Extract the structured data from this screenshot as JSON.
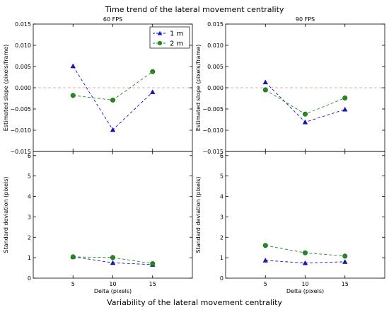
{
  "figure": {
    "title": "Time trend of the lateral movement centrality",
    "bottom_title": "Variability of the lateral movement centrality"
  },
  "legend": {
    "placement": "upper-right of top-left panel",
    "items": [
      {
        "label": "1 m",
        "color": "#1515c8",
        "marker": "triangle"
      },
      {
        "label": "2 m",
        "color": "#1e8c1e",
        "marker": "circle"
      }
    ]
  },
  "colors": {
    "series_1m": "#1515c8",
    "series_2m": "#1e8c1e",
    "zero_line": "#f28b8b"
  },
  "chart_data": [
    {
      "id": "slope-60",
      "type": "line",
      "title": "60 FPS",
      "xlabel": "",
      "ylabel": "Estimated slope (pixels/frame)",
      "x": [
        5,
        10,
        15
      ],
      "xlim": [
        0,
        20
      ],
      "ylim": [
        -0.015,
        0.015
      ],
      "xticks": [
        "5",
        "10",
        "15"
      ],
      "yticks": [
        "0.015",
        "0.010",
        "0.005",
        "0.000",
        "−0.005",
        "−0.010",
        "−0.015"
      ],
      "ytick_values": [
        0.015,
        0.01,
        0.005,
        0.0,
        -0.005,
        -0.01,
        -0.015
      ],
      "zero_line": true,
      "grid": false,
      "series": [
        {
          "name": "1 m",
          "values": [
            0.0051,
            -0.0099,
            -0.001
          ]
        },
        {
          "name": "2 m",
          "values": [
            -0.0018,
            -0.0029,
            0.0038
          ]
        }
      ]
    },
    {
      "id": "slope-90",
      "type": "line",
      "title": "90 FPS",
      "xlabel": "",
      "ylabel": "Estimated slope (pixels/frame)",
      "x": [
        5,
        10,
        15
      ],
      "xlim": [
        0,
        20
      ],
      "ylim": [
        -0.015,
        0.015
      ],
      "xticks": [
        "5",
        "10",
        "15"
      ],
      "yticks": [
        "0.015",
        "0.010",
        "0.005",
        "0.000",
        "−0.005",
        "−0.010",
        "−0.015"
      ],
      "ytick_values": [
        0.015,
        0.01,
        0.005,
        0.0,
        -0.005,
        -0.01,
        -0.015
      ],
      "zero_line": true,
      "grid": false,
      "series": [
        {
          "name": "1 m",
          "values": [
            0.0013,
            -0.0081,
            -0.0051
          ]
        },
        {
          "name": "2 m",
          "values": [
            -0.0005,
            -0.0062,
            -0.0024
          ]
        }
      ]
    },
    {
      "id": "std-60",
      "type": "line",
      "title": "",
      "xlabel": "Delta (pixels)",
      "ylabel": "Standard deviation (pixels)",
      "x": [
        5,
        10,
        15
      ],
      "xlim": [
        0,
        20
      ],
      "ylim": [
        0,
        6.2
      ],
      "xticks": [
        "5",
        "10",
        "15"
      ],
      "yticks": [
        "0",
        "1",
        "2",
        "3",
        "4",
        "5",
        "6"
      ],
      "ytick_values": [
        0,
        1,
        2,
        3,
        4,
        5,
        6
      ],
      "zero_line": false,
      "grid": false,
      "series": [
        {
          "name": "1 m",
          "values": [
            1.05,
            0.75,
            0.66
          ]
        },
        {
          "name": "2 m",
          "values": [
            1.04,
            1.01,
            0.71
          ]
        }
      ]
    },
    {
      "id": "std-90",
      "type": "line",
      "title": "",
      "xlabel": "Delta (pixels)",
      "ylabel": "Standard deviation (pixels)",
      "x": [
        5,
        10,
        15
      ],
      "xlim": [
        0,
        20
      ],
      "ylim": [
        0,
        6.2
      ],
      "xticks": [
        "5",
        "10",
        "15"
      ],
      "yticks": [
        "0",
        "1",
        "2",
        "3",
        "4",
        "5",
        "6"
      ],
      "ytick_values": [
        0,
        1,
        2,
        3,
        4,
        5,
        6
      ],
      "zero_line": false,
      "grid": false,
      "series": [
        {
          "name": "1 m",
          "values": [
            0.87,
            0.74,
            0.8
          ]
        },
        {
          "name": "2 m",
          "values": [
            1.6,
            1.24,
            1.08
          ]
        }
      ]
    }
  ]
}
